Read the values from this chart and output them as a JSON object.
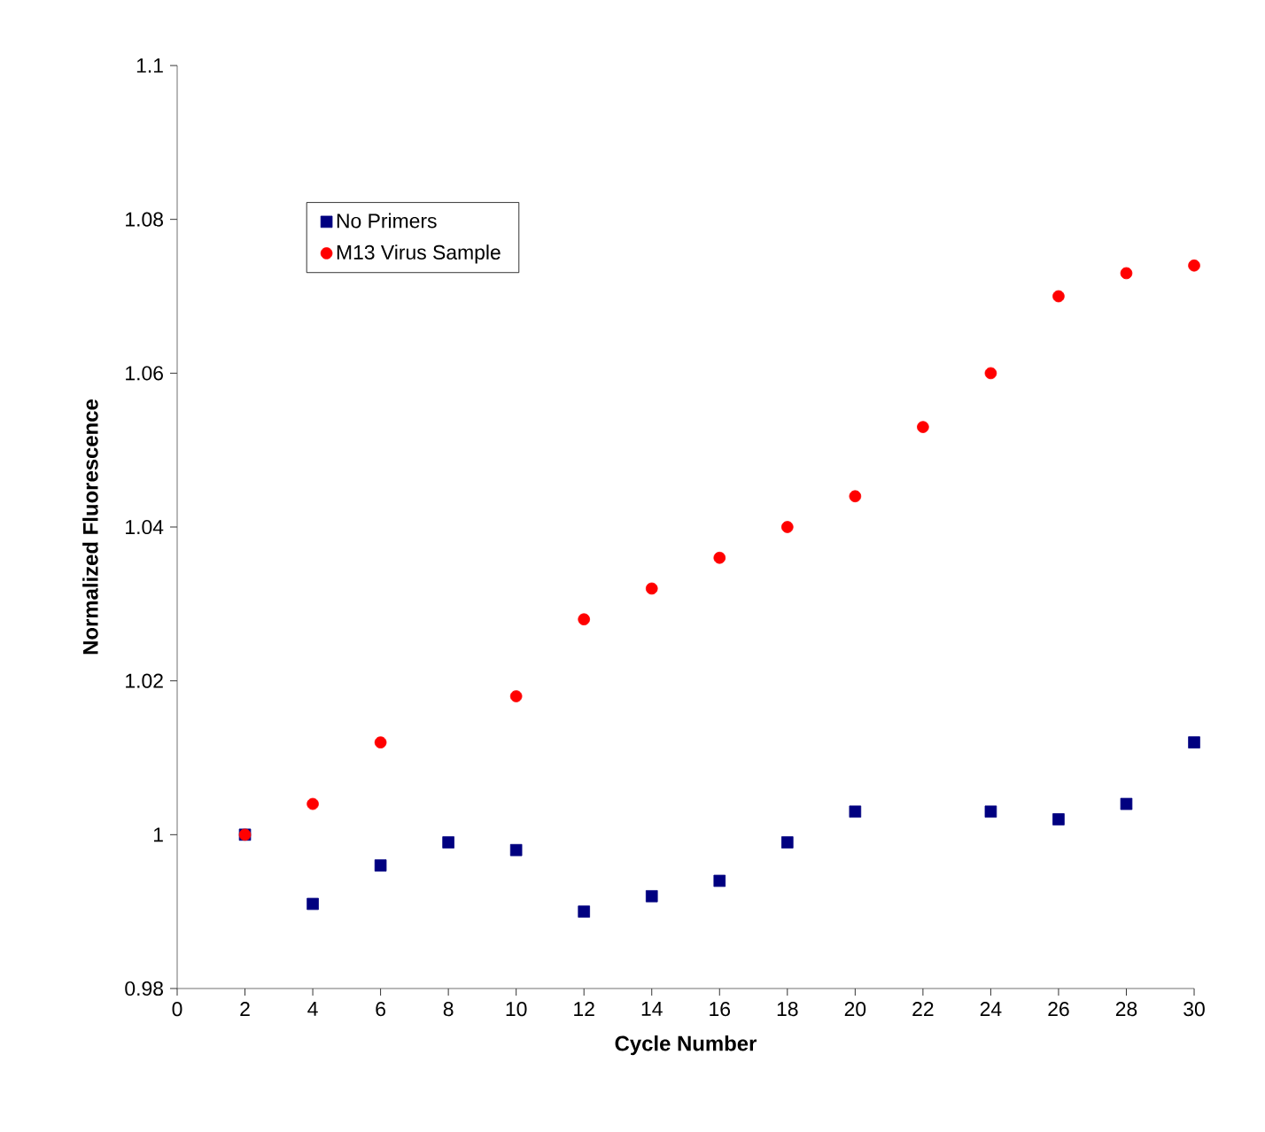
{
  "chart_data": {
    "type": "scatter",
    "xlabel": "Cycle Number",
    "ylabel": "Normalized Fluorescence",
    "xlim": [
      0,
      30
    ],
    "xticks": [
      0,
      2,
      4,
      6,
      8,
      10,
      12,
      14,
      16,
      18,
      20,
      22,
      24,
      26,
      28,
      30
    ],
    "ylim": [
      0.98,
      1.1
    ],
    "yticks": [
      0.98,
      1,
      1.02,
      1.04,
      1.06,
      1.08,
      1.1
    ],
    "grid": false,
    "legend": "top left",
    "series": [
      {
        "name": "No Primers",
        "color": "#000080",
        "marker": "square",
        "x": [
          2,
          4,
          6,
          8,
          10,
          12,
          14,
          16,
          18,
          20,
          24,
          26,
          28,
          30
        ],
        "values": [
          1.0,
          0.991,
          0.996,
          0.999,
          0.998,
          0.99,
          0.992,
          0.994,
          0.999,
          1.003,
          1.003,
          1.002,
          1.004,
          1.012
        ]
      },
      {
        "name": "M13 Virus Sample",
        "color": "#ff0000",
        "marker": "circle",
        "x": [
          2,
          4,
          6,
          10,
          12,
          14,
          16,
          18,
          20,
          22,
          24,
          26,
          28,
          30
        ],
        "values": [
          1.0,
          1.004,
          1.012,
          1.018,
          1.028,
          1.032,
          1.036,
          1.04,
          1.044,
          1.053,
          1.06,
          1.07,
          1.073,
          1.074
        ]
      }
    ]
  }
}
